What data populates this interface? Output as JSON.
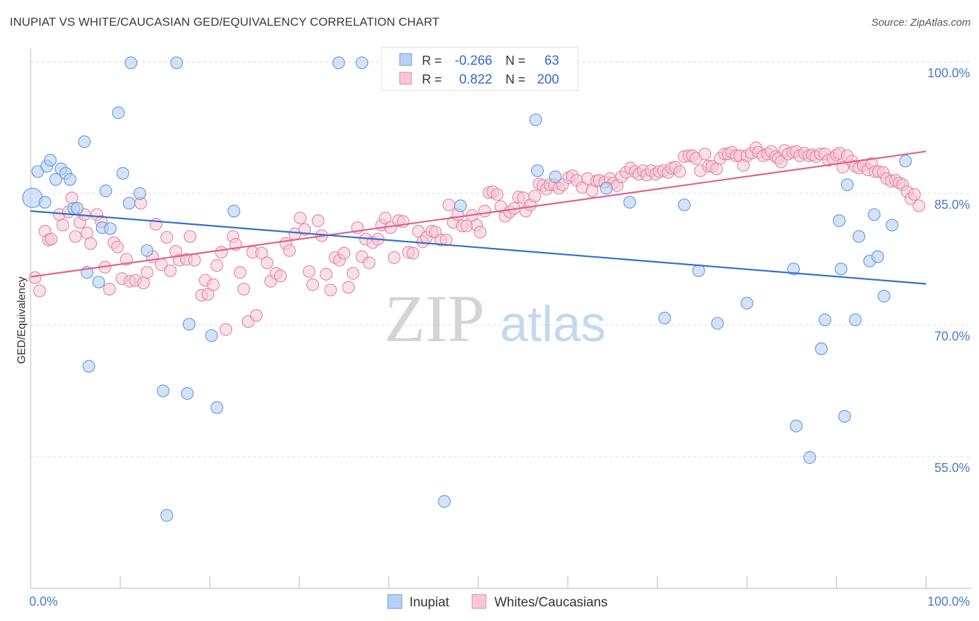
{
  "header": {
    "title": "INUPIAT VS WHITE/CAUCASIAN GED/EQUIVALENCY CORRELATION CHART",
    "source": "Source: ZipAtlas.com"
  },
  "watermark": {
    "zip": "ZIP",
    "atlas": "atlas"
  },
  "legend_top": {
    "rows": [
      {
        "r_label": "R =",
        "r_value": "-0.266",
        "n_label": "N =",
        "n_value": "63",
        "color": "#6a9be0",
        "fill": "#b7d0f5"
      },
      {
        "r_label": "R =",
        "r_value": "0.822",
        "n_label": "N =",
        "n_value": "200",
        "color": "#e08aa8",
        "fill": "#f8c6d6"
      }
    ]
  },
  "legend_bottom": {
    "items": [
      {
        "label": "Inupiat",
        "fill": "#b7d0f5",
        "stroke": "#6a9be0"
      },
      {
        "label": "Whites/Caucasians",
        "fill": "#f8c6d6",
        "stroke": "#e08aa8"
      }
    ]
  },
  "chart_data": {
    "type": "scatter",
    "title": "INUPIAT VS WHITE/CAUCASIAN GED/EQUIVALENCY CORRELATION CHART",
    "xlabel": "",
    "ylabel": "GED/Equivalency",
    "xlim": [
      0,
      100
    ],
    "ylim": [
      40,
      101.5
    ],
    "x_tick_labels": [
      "0.0%",
      "100.0%"
    ],
    "y_ticks": [
      55,
      70,
      85,
      100
    ],
    "y_tick_labels": [
      "55.0%",
      "70.0%",
      "85.0%",
      "100.0%"
    ],
    "grid": "horizontal dashed",
    "colors": {
      "inupiat_stroke": "#6a9be0",
      "inupiat_fill": "#b7d0f5",
      "inupiat_line": "#2f6fcc",
      "white_stroke": "#e08aa8",
      "white_fill": "#f8c6d6",
      "white_line": "#e0608c"
    },
    "series": [
      {
        "name": "Inupiat",
        "trend": {
          "x": [
            0,
            100
          ],
          "y": [
            83.0,
            74.7
          ]
        },
        "points": [
          [
            0.2,
            84.5
          ],
          [
            0.8,
            87.5
          ],
          [
            1.6,
            84.0
          ],
          [
            1.8,
            88.1
          ],
          [
            2.2,
            88.8
          ],
          [
            2.8,
            86.6
          ],
          [
            3.4,
            87.8
          ],
          [
            3.9,
            87.3
          ],
          [
            4.4,
            86.6
          ],
          [
            4.8,
            83.3
          ],
          [
            5.2,
            83.3
          ],
          [
            6.0,
            90.9
          ],
          [
            6.3,
            76.0
          ],
          [
            6.5,
            65.3
          ],
          [
            7.6,
            74.9
          ],
          [
            8.0,
            81.1
          ],
          [
            8.4,
            85.3
          ],
          [
            8.9,
            81.0
          ],
          [
            9.8,
            94.2
          ],
          [
            10.3,
            87.3
          ],
          [
            11.0,
            83.9
          ],
          [
            11.2,
            99.9
          ],
          [
            12.2,
            85.0
          ],
          [
            13.0,
            78.5
          ],
          [
            14.8,
            62.5
          ],
          [
            15.2,
            48.3
          ],
          [
            16.3,
            99.9
          ],
          [
            17.5,
            62.2
          ],
          [
            17.7,
            70.1
          ],
          [
            20.2,
            68.8
          ],
          [
            20.8,
            60.6
          ],
          [
            22.7,
            83.0
          ],
          [
            34.4,
            99.9
          ],
          [
            37.0,
            99.9
          ],
          [
            46.2,
            49.9
          ],
          [
            48.0,
            83.6
          ],
          [
            56.4,
            93.4
          ],
          [
            56.6,
            87.6
          ],
          [
            58.6,
            86.9
          ],
          [
            64.3,
            85.6
          ],
          [
            66.9,
            84.0
          ],
          [
            70.8,
            70.8
          ],
          [
            73.0,
            83.7
          ],
          [
            74.6,
            76.2
          ],
          [
            76.7,
            70.2
          ],
          [
            80.0,
            72.5
          ],
          [
            85.2,
            76.4
          ],
          [
            85.5,
            58.5
          ],
          [
            87.0,
            54.9
          ],
          [
            88.3,
            67.3
          ],
          [
            88.7,
            70.6
          ],
          [
            90.3,
            81.9
          ],
          [
            90.5,
            76.4
          ],
          [
            90.9,
            59.6
          ],
          [
            91.2,
            86.0
          ],
          [
            92.1,
            70.6
          ],
          [
            92.5,
            80.1
          ],
          [
            93.7,
            77.3
          ],
          [
            94.2,
            82.6
          ],
          [
            94.6,
            77.8
          ],
          [
            95.3,
            73.3
          ],
          [
            96.2,
            81.4
          ],
          [
            97.7,
            88.7
          ]
        ],
        "featured_point": [
          0.2,
          84.5
        ]
      },
      {
        "name": "Whites/Caucasians",
        "trend": {
          "x": [
            0,
            100
          ],
          "y": [
            75.5,
            89.8
          ]
        },
        "points": [
          [
            0.5,
            75.4
          ],
          [
            1.0,
            73.9
          ],
          [
            1.6,
            80.7
          ],
          [
            2.0,
            79.7
          ],
          [
            2.3,
            79.8
          ],
          [
            3.2,
            82.6
          ],
          [
            3.6,
            81.4
          ],
          [
            4.2,
            82.9
          ],
          [
            4.6,
            84.5
          ],
          [
            5.0,
            80.1
          ],
          [
            5.5,
            81.7
          ],
          [
            6.0,
            82.6
          ],
          [
            6.3,
            80.5
          ],
          [
            6.7,
            79.3
          ],
          [
            7.4,
            82.6
          ],
          [
            7.9,
            81.8
          ],
          [
            8.3,
            76.6
          ],
          [
            8.8,
            74.1
          ],
          [
            9.3,
            79.4
          ],
          [
            9.7,
            78.9
          ],
          [
            10.2,
            75.3
          ],
          [
            10.7,
            77.5
          ],
          [
            11.1,
            75.0
          ],
          [
            11.7,
            75.1
          ],
          [
            12.3,
            83.9
          ],
          [
            12.6,
            74.8
          ],
          [
            13.0,
            76.0
          ],
          [
            13.6,
            77.8
          ],
          [
            14.0,
            81.5
          ],
          [
            14.6,
            76.9
          ],
          [
            15.2,
            80.0
          ],
          [
            15.6,
            76.2
          ],
          [
            16.2,
            78.4
          ],
          [
            16.6,
            77.4
          ],
          [
            17.4,
            77.5
          ],
          [
            17.8,
            80.1
          ],
          [
            18.3,
            77.4
          ],
          [
            19.1,
            73.4
          ],
          [
            19.5,
            75.1
          ],
          [
            19.8,
            73.5
          ],
          [
            20.4,
            74.6
          ],
          [
            20.8,
            76.8
          ],
          [
            21.3,
            78.3
          ],
          [
            21.8,
            69.5
          ],
          [
            22.6,
            80.1
          ],
          [
            22.9,
            79.2
          ],
          [
            23.4,
            76.0
          ],
          [
            23.8,
            74.1
          ],
          [
            24.3,
            70.4
          ],
          [
            24.8,
            78.3
          ],
          [
            25.2,
            71.1
          ],
          [
            25.8,
            78.2
          ],
          [
            26.4,
            77.1
          ],
          [
            26.8,
            75.0
          ],
          [
            27.4,
            75.9
          ],
          [
            27.9,
            75.6
          ],
          [
            28.5,
            79.3
          ],
          [
            28.9,
            78.5
          ],
          [
            29.5,
            80.4
          ],
          [
            30.1,
            82.2
          ],
          [
            30.6,
            80.9
          ],
          [
            31.1,
            76.1
          ],
          [
            31.5,
            74.6
          ],
          [
            32.1,
            81.9
          ],
          [
            32.5,
            80.2
          ],
          [
            33.0,
            75.8
          ],
          [
            33.5,
            74.0
          ],
          [
            34.0,
            77.7
          ],
          [
            34.5,
            77.4
          ],
          [
            35.0,
            78.2
          ],
          [
            35.5,
            74.3
          ],
          [
            36.0,
            75.9
          ],
          [
            36.5,
            81.1
          ],
          [
            37.0,
            77.8
          ],
          [
            37.4,
            79.8
          ],
          [
            37.8,
            77.1
          ],
          [
            38.2,
            79.4
          ],
          [
            38.8,
            79.8
          ],
          [
            39.2,
            81.4
          ],
          [
            39.6,
            82.2
          ],
          [
            40.2,
            81.1
          ],
          [
            40.6,
            77.7
          ],
          [
            41.1,
            81.9
          ],
          [
            41.6,
            81.8
          ],
          [
            42.2,
            78.3
          ],
          [
            42.7,
            78.2
          ],
          [
            43.3,
            80.7
          ],
          [
            43.8,
            79.5
          ],
          [
            44.2,
            80.0
          ],
          [
            44.8,
            80.7
          ],
          [
            45.2,
            80.6
          ],
          [
            45.8,
            79.7
          ],
          [
            46.4,
            79.7
          ],
          [
            46.7,
            83.7
          ],
          [
            47.2,
            81.7
          ],
          [
            47.7,
            82.6
          ],
          [
            48.2,
            81.3
          ],
          [
            48.7,
            81.3
          ],
          [
            49.3,
            82.5
          ],
          [
            49.8,
            81.4
          ],
          [
            50.2,
            80.6
          ],
          [
            50.7,
            83.0
          ],
          [
            51.2,
            85.1
          ],
          [
            51.6,
            85.2
          ],
          [
            52.1,
            84.9
          ],
          [
            52.5,
            83.5
          ],
          [
            53.0,
            82.4
          ],
          [
            53.5,
            82.9
          ],
          [
            54.0,
            83.3
          ],
          [
            54.5,
            84.6
          ],
          [
            55.0,
            84.5
          ],
          [
            55.3,
            83.0
          ],
          [
            55.8,
            83.7
          ],
          [
            56.3,
            84.7
          ],
          [
            56.8,
            86.1
          ],
          [
            57.2,
            85.9
          ],
          [
            57.6,
            85.5
          ],
          [
            58.0,
            86.0
          ],
          [
            58.5,
            86.0
          ],
          [
            59.0,
            85.6
          ],
          [
            59.4,
            86.0
          ],
          [
            60.1,
            86.8
          ],
          [
            60.5,
            87.0
          ],
          [
            61.0,
            86.5
          ],
          [
            61.6,
            85.7
          ],
          [
            62.2,
            86.7
          ],
          [
            62.7,
            85.3
          ],
          [
            63.2,
            86.4
          ],
          [
            63.5,
            86.5
          ],
          [
            64.1,
            86.3
          ],
          [
            64.7,
            86.7
          ],
          [
            65.1,
            86.2
          ],
          [
            65.5,
            85.9
          ],
          [
            66.0,
            86.9
          ],
          [
            66.5,
            87.4
          ],
          [
            67.0,
            87.9
          ],
          [
            67.5,
            87.5
          ],
          [
            67.9,
            87.2
          ],
          [
            68.4,
            87.6
          ],
          [
            68.8,
            87.1
          ],
          [
            69.3,
            87.6
          ],
          [
            69.8,
            87.2
          ],
          [
            70.2,
            87.5
          ],
          [
            70.7,
            87.6
          ],
          [
            71.2,
            87.4
          ],
          [
            71.6,
            87.9
          ],
          [
            72.0,
            88.0
          ],
          [
            72.5,
            87.5
          ],
          [
            73.0,
            89.2
          ],
          [
            73.5,
            89.3
          ],
          [
            73.9,
            89.3
          ],
          [
            74.3,
            89.0
          ],
          [
            74.8,
            87.6
          ],
          [
            75.3,
            89.5
          ],
          [
            75.7,
            88.1
          ],
          [
            76.1,
            88.1
          ],
          [
            76.6,
            87.8
          ],
          [
            77.0,
            89.0
          ],
          [
            77.5,
            89.5
          ],
          [
            77.9,
            89.5
          ],
          [
            78.3,
            89.7
          ],
          [
            78.8,
            89.3
          ],
          [
            79.2,
            89.3
          ],
          [
            79.6,
            88.2
          ],
          [
            80.0,
            89.3
          ],
          [
            80.5,
            89.6
          ],
          [
            81.0,
            90.2
          ],
          [
            81.3,
            89.7
          ],
          [
            81.8,
            89.3
          ],
          [
            82.3,
            89.5
          ],
          [
            82.7,
            89.8
          ],
          [
            83.2,
            89.2
          ],
          [
            83.5,
            89.0
          ],
          [
            83.8,
            88.6
          ],
          [
            84.2,
            89.9
          ],
          [
            84.6,
            89.5
          ],
          [
            85.1,
            89.7
          ],
          [
            85.5,
            89.8
          ],
          [
            85.9,
            89.3
          ],
          [
            86.4,
            89.6
          ],
          [
            86.9,
            89.3
          ],
          [
            87.3,
            89.4
          ],
          [
            87.7,
            89.2
          ],
          [
            88.2,
            89.5
          ],
          [
            88.7,
            89.5
          ],
          [
            89.1,
            88.8
          ],
          [
            89.6,
            89.0
          ],
          [
            90.0,
            89.4
          ],
          [
            90.3,
            89.6
          ],
          [
            90.7,
            88.0
          ],
          [
            91.2,
            89.3
          ],
          [
            91.7,
            88.7
          ],
          [
            92.1,
            88.1
          ],
          [
            92.5,
            87.9
          ],
          [
            93.0,
            88.2
          ],
          [
            93.5,
            87.7
          ],
          [
            93.9,
            88.4
          ],
          [
            94.3,
            87.5
          ],
          [
            94.7,
            87.5
          ],
          [
            95.2,
            87.4
          ],
          [
            95.6,
            86.7
          ],
          [
            96.1,
            86.4
          ],
          [
            96.6,
            86.5
          ],
          [
            97.0,
            86.2
          ],
          [
            97.4,
            86.0
          ],
          [
            97.9,
            85.2
          ],
          [
            98.3,
            84.4
          ],
          [
            98.7,
            84.9
          ],
          [
            99.2,
            83.6
          ]
        ]
      }
    ]
  }
}
